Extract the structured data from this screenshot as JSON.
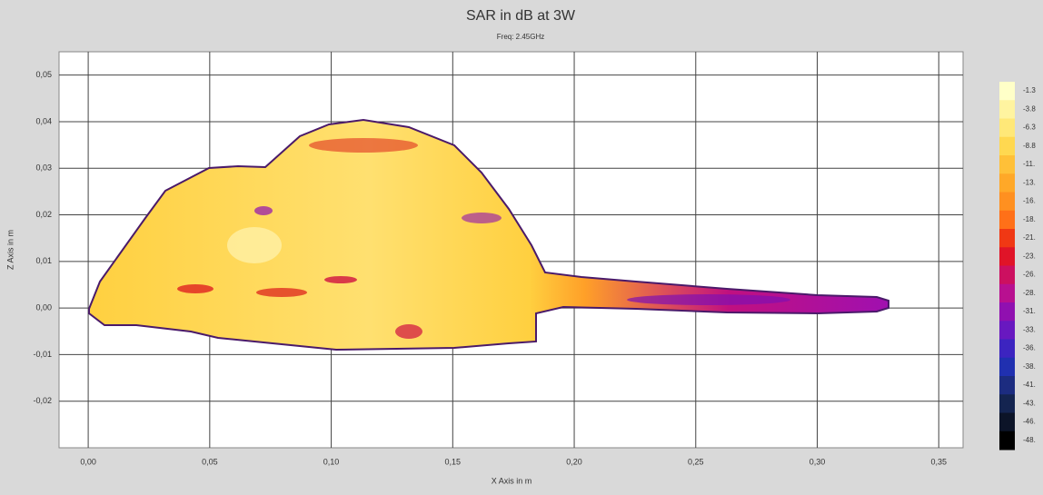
{
  "chart_data": {
    "type": "heatmap",
    "title": "SAR in dB at 3W",
    "subtitle": "Freq: 2.45GHz",
    "x_label": "X Axis in m",
    "y_label": "Z Axis in m",
    "xlim": [
      -0.012,
      0.36
    ],
    "ylim": [
      -0.03,
      0.055
    ],
    "xticks": [
      {
        "value": 0,
        "label": "0,00"
      },
      {
        "value": 0.05,
        "label": "0,05"
      },
      {
        "value": 0.1,
        "label": "0,10"
      },
      {
        "value": 0.15,
        "label": "0,15"
      },
      {
        "value": 0.2,
        "label": "0,20"
      },
      {
        "value": 0.25,
        "label": "0,25"
      },
      {
        "value": 0.3,
        "label": "0,30"
      },
      {
        "value": 0.35,
        "label": "0,35"
      }
    ],
    "yticks": [
      {
        "value": 0.05,
        "label": "0,05"
      },
      {
        "value": 0.04,
        "label": "0,04"
      },
      {
        "value": 0.03,
        "label": "0,03"
      },
      {
        "value": 0.02,
        "label": "0,02"
      },
      {
        "value": 0.01,
        "label": "0,01"
      },
      {
        "value": 0,
        "label": "0,00"
      },
      {
        "value": -0.01,
        "label": "-0,01"
      },
      {
        "value": -0.02,
        "label": "-0,02"
      }
    ],
    "grid": true,
    "colorbar": {
      "labels": [
        "-1.3",
        "-3.8",
        "-6.3",
        "-8.8",
        "-11.",
        "-13.",
        "-16.",
        "-18.",
        "-21.",
        "-23.",
        "-26.",
        "-28.",
        "-31.",
        "-33.",
        "-36.",
        "-38.",
        "-41.",
        "-43.",
        "-46.",
        "-48."
      ],
      "colors": [
        "#ffffc8",
        "#fff4a0",
        "#ffe878",
        "#ffd850",
        "#ffc038",
        "#ffa828",
        "#ff9020",
        "#ff7018",
        "#f03814",
        "#e01428",
        "#cc1060",
        "#b81090",
        "#9010b0",
        "#6818c0",
        "#3c24c0",
        "#2030b0",
        "#1c2c80",
        "#142450",
        "#0c1428",
        "#000000"
      ]
    }
  }
}
